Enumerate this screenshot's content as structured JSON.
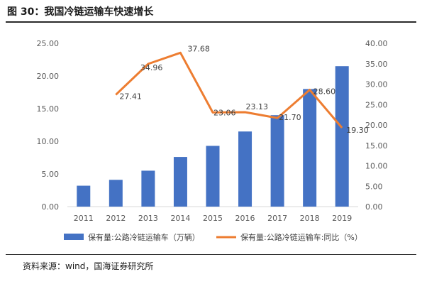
{
  "figure": {
    "title": "图 30：我国冷链运输车快速增长",
    "source": "资料来源：wind，国海证券研究所"
  },
  "chart_data": {
    "type": "bar+line",
    "categories": [
      "2011",
      "2012",
      "2013",
      "2014",
      "2015",
      "2016",
      "2017",
      "2018",
      "2019"
    ],
    "series": [
      {
        "name": "保有量:公路冷链运输车（万辆）",
        "type": "bar",
        "axis": "left",
        "color": "#4472C4",
        "values": [
          3.2,
          4.1,
          5.5,
          7.6,
          9.3,
          11.5,
          14.0,
          18.0,
          21.5
        ]
      },
      {
        "name": "保有量:公路冷链运输车:同比（%）",
        "type": "line",
        "axis": "right",
        "color": "#ED7D31",
        "values": [
          null,
          27.41,
          34.96,
          37.68,
          23.06,
          23.13,
          21.7,
          28.6,
          19.3
        ],
        "labels": [
          "",
          "27.41",
          "34.96",
          "37.68",
          "23.06",
          "23.13",
          "21.70",
          "28.60",
          "19.30"
        ]
      }
    ],
    "left_axis": {
      "min": 0,
      "max": 25,
      "step": 5,
      "ticks": [
        "0.00",
        "5.00",
        "10.00",
        "15.00",
        "20.00",
        "25.00"
      ]
    },
    "right_axis": {
      "min": 0,
      "max": 40,
      "step": 5,
      "ticks": [
        "0.00",
        "5.00",
        "10.00",
        "15.00",
        "20.00",
        "25.00",
        "30.00",
        "35.00",
        "40.00"
      ]
    },
    "grid": false,
    "legend_position": "bottom"
  }
}
